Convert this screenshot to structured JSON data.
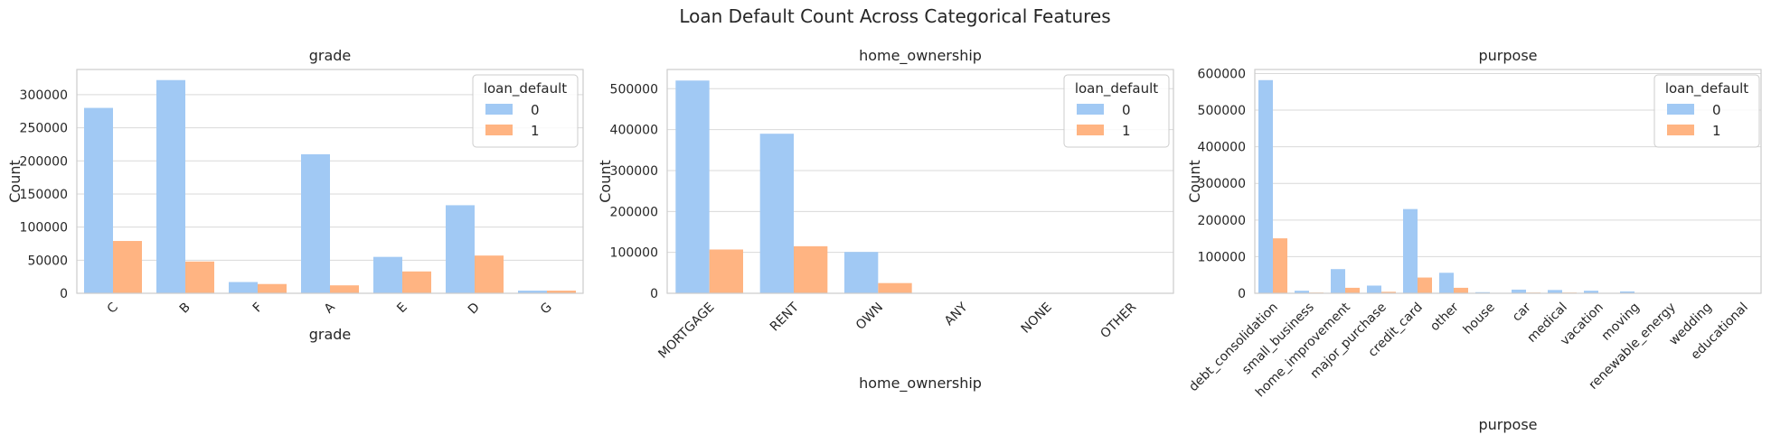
{
  "title": "Loan Default Count Across Categorical Features",
  "colors": {
    "class_0": "#a1c9f4",
    "class_1": "#ffb482",
    "grid": "#d9d9d9",
    "spine": "#cccccc"
  },
  "chart_data": [
    {
      "type": "bar",
      "title": "grade",
      "xlabel": "grade",
      "ylabel": "Count",
      "categories": [
        "C",
        "B",
        "F",
        "A",
        "E",
        "D",
        "G"
      ],
      "series": [
        {
          "name": "0",
          "values": [
            280000,
            322000,
            17000,
            210000,
            55000,
            133000,
            4000
          ]
        },
        {
          "name": "1",
          "values": [
            79000,
            48000,
            14000,
            12000,
            33000,
            57000,
            4000
          ]
        }
      ],
      "ylim": [
        0,
        338000
      ],
      "yticks": [
        0,
        50000,
        100000,
        150000,
        200000,
        250000,
        300000
      ],
      "xtick_rotation": 45,
      "legend": {
        "title": "loan_default",
        "labels": [
          "0",
          "1"
        ],
        "placement": "top-right"
      }
    },
    {
      "type": "bar",
      "title": "home_ownership",
      "xlabel": "home_ownership",
      "ylabel": "Count",
      "categories": [
        "MORTGAGE",
        "RENT",
        "OWN",
        "ANY",
        "NONE",
        "OTHER"
      ],
      "series": [
        {
          "name": "0",
          "values": [
            520000,
            390000,
            101000,
            200,
            100,
            100
          ]
        },
        {
          "name": "1",
          "values": [
            107000,
            115000,
            25000,
            100,
            50,
            50
          ]
        }
      ],
      "ylim": [
        0,
        547000
      ],
      "yticks": [
        0,
        100000,
        200000,
        300000,
        400000,
        500000
      ],
      "xtick_rotation": 45,
      "legend": {
        "title": "loan_default",
        "labels": [
          "0",
          "1"
        ],
        "placement": "top-right"
      }
    },
    {
      "type": "bar",
      "title": "purpose",
      "xlabel": "purpose",
      "ylabel": "Count",
      "categories": [
        "debt_consolidation",
        "small_business",
        "home_improvement",
        "major_purchase",
        "credit_card",
        "other",
        "house",
        "car",
        "medical",
        "vacation",
        "moving",
        "renewable_energy",
        "wedding",
        "educational"
      ],
      "series": [
        {
          "name": "0",
          "values": [
            582000,
            7000,
            66000,
            21000,
            230000,
            56000,
            3000,
            10000,
            9000,
            7000,
            5000,
            1000,
            1000,
            500
          ]
        },
        {
          "name": "1",
          "values": [
            150000,
            2000,
            15000,
            4000,
            43000,
            15000,
            1000,
            2000,
            2000,
            1000,
            1000,
            200,
            200,
            100
          ]
        }
      ],
      "ylim": [
        0,
        611000
      ],
      "yticks": [
        0,
        100000,
        200000,
        300000,
        400000,
        500000,
        600000
      ],
      "xtick_rotation": 45,
      "legend": {
        "title": "loan_default",
        "labels": [
          "0",
          "1"
        ],
        "placement": "top-right"
      }
    }
  ]
}
